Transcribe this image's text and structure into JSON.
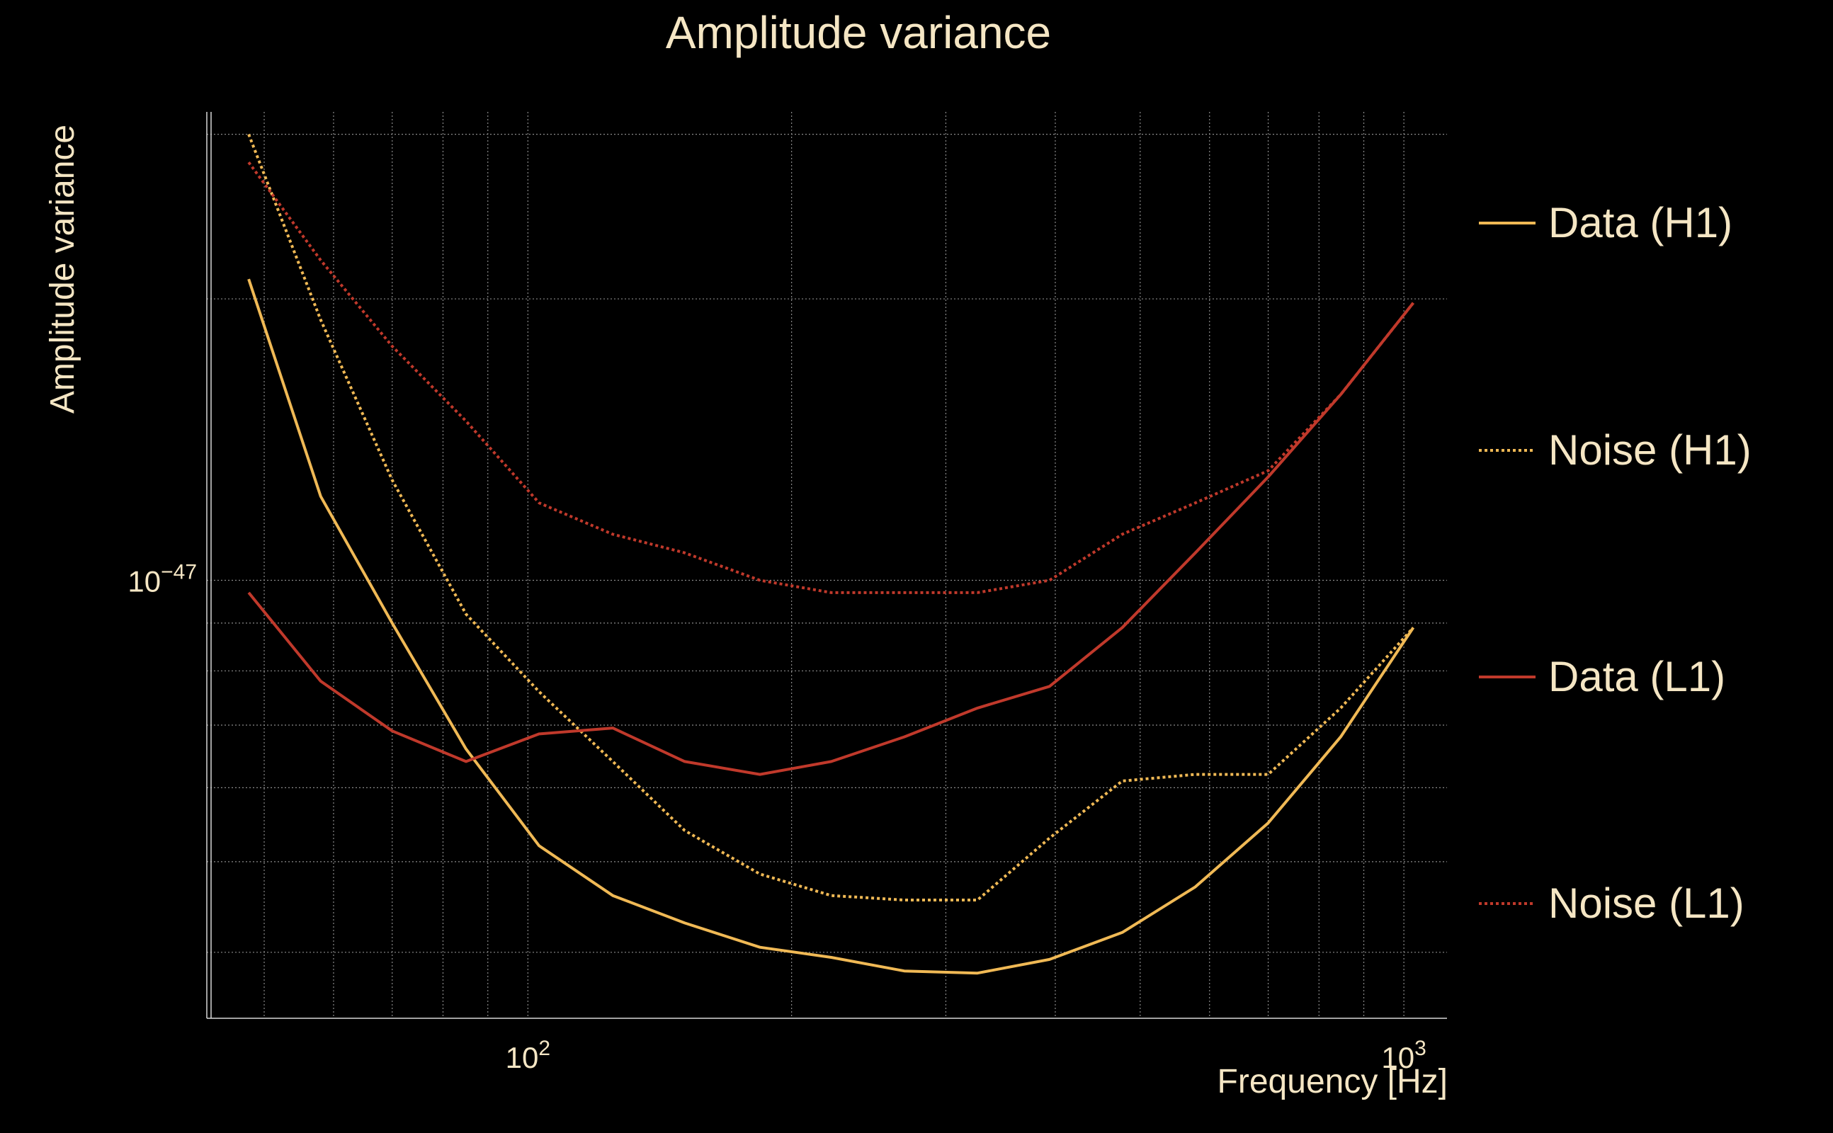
{
  "chart_data": {
    "type": "line",
    "title": "Amplitude variance",
    "xlabel": "Frequency [Hz]",
    "ylabel": "Amplitude variance",
    "xscale": "log",
    "yscale": "log",
    "xlim": [
      43,
      1120
    ],
    "ylim": [
      3.4e-48,
      3.17e-47
    ],
    "x_ticks": [
      {
        "value": 100,
        "base": "10",
        "exp": "2"
      },
      {
        "value": 1000,
        "base": "10",
        "exp": "3"
      }
    ],
    "y_ticks": [
      {
        "value": 1e-47,
        "base": "10",
        "exp": "−47"
      }
    ],
    "grid": true,
    "legend_position": "right",
    "x": [
      48,
      58,
      70,
      85,
      103,
      125,
      151,
      184,
      222,
      269,
      326,
      394,
      477,
      578,
      700,
      847,
      1025
    ],
    "series": [
      {
        "name": "Data (H1)",
        "color": "#f0b955",
        "dash": "solid",
        "values": [
          2.1e-47,
          1.23e-47,
          9e-48,
          6.6e-48,
          5.2e-48,
          4.6e-48,
          4.3e-48,
          4.05e-48,
          3.95e-48,
          3.82e-48,
          3.8e-48,
          3.93e-48,
          4.2e-48,
          4.7e-48,
          5.5e-48,
          6.8e-48,
          8.9e-48
        ]
      },
      {
        "name": "Noise (H1)",
        "color": "#f0b955",
        "dash": "dotted",
        "values": [
          3e-47,
          1.9e-47,
          1.28e-47,
          9.2e-48,
          7.6e-48,
          6.4e-48,
          5.4e-48,
          4.85e-48,
          4.6e-48,
          4.55e-48,
          4.55e-48,
          5.3e-48,
          6.1e-48,
          6.2e-48,
          6.2e-48,
          7.3e-48,
          8.9e-48
        ]
      },
      {
        "name": "Data (L1)",
        "color": "#c0392b",
        "dash": "solid",
        "values": [
          9.7e-48,
          7.8e-48,
          6.9e-48,
          6.4e-48,
          6.85e-48,
          6.95e-48,
          6.4e-48,
          6.2e-48,
          6.4e-48,
          6.8e-48,
          7.3e-48,
          7.7e-48,
          8.9e-48,
          1.07e-47,
          1.29e-47,
          1.58e-47,
          1.98e-47
        ]
      },
      {
        "name": "Noise (L1)",
        "color": "#c0392b",
        "dash": "dotted",
        "values": [
          2.8e-47,
          2.2e-47,
          1.78e-47,
          1.48e-47,
          1.21e-47,
          1.12e-47,
          1.07e-47,
          1e-47,
          9.7e-48,
          9.7e-48,
          9.7e-48,
          1e-47,
          1.12e-47,
          1.21e-47,
          1.31e-47,
          1.58e-47,
          1.98e-47
        ]
      }
    ]
  }
}
